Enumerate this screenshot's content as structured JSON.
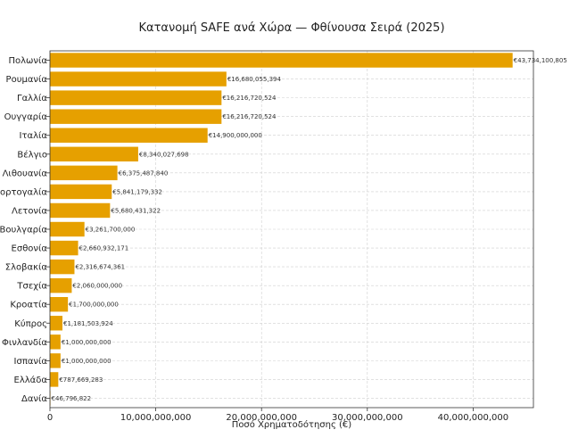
{
  "chart_data": {
    "type": "bar",
    "orientation": "horizontal",
    "title": "Κατανομή SAFE ανά Χώρα — Φθίνουσα Σειρά (2025)",
    "xlabel": "Ποσό Χρηματοδότησης (€)",
    "ylabel": "",
    "xlim": [
      0,
      45700000000
    ],
    "x_ticks": [
      0,
      10000000000,
      20000000000,
      30000000000,
      40000000000
    ],
    "x_tick_labels": [
      "0",
      "10,000,000,000",
      "20,000,000,000",
      "30,000,000,000",
      "40,000,000,000"
    ],
    "grid": true,
    "bar_color": "#e6a000",
    "categories": [
      "Πολωνία",
      "Ρουμανία",
      "Γαλλία",
      "Ουγγαρία",
      "Ιταλία",
      "Βέλγιο",
      "Λιθουανία",
      "Πορτογαλία",
      "Λετονία",
      "Βουλγαρία",
      "Εσθονία",
      "Σλοβακία",
      "Τσεχία",
      "Κροατία",
      "Κύπρος",
      "Φινλανδία",
      "Ισπανία",
      "Ελλάδα",
      "Δανία"
    ],
    "values": [
      43734100805,
      16680055394,
      16216720524,
      16216720524,
      14900000000,
      8340027698,
      6375487840,
      5841179332,
      5680431322,
      3261700000,
      2660932171,
      2316674361,
      2060000000,
      1700000000,
      1181503924,
      1000000000,
      1000000000,
      787669283,
      46796822
    ],
    "value_labels": [
      "€43,734,100,805",
      "€16,680,055,394",
      "€16,216,720,524",
      "€16,216,720,524",
      "€14,900,000,000",
      "€8,340,027,698",
      "€6,375,487,840",
      "€5,841,179,332",
      "€5,680,431,322",
      "€3,261,700,000",
      "€2,660,932,171",
      "€2,316,674,361",
      "€2,060,000,000",
      "€1,700,000,000",
      "€1,181,503,924",
      "€1,000,000,000",
      "€1,000,000,000",
      "€787,669,283",
      "€46,796,822"
    ]
  }
}
